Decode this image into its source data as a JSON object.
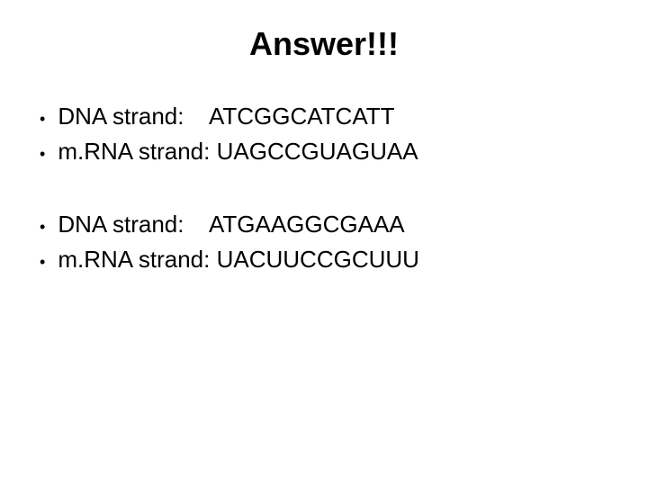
{
  "title": "Answer!!!",
  "title_fontsize": 36,
  "title_fontweight": "bold",
  "body_fontsize": 26,
  "text_color": "#000000",
  "background_color": "#ffffff",
  "bullet_marker": "•",
  "groups": [
    {
      "items": [
        {
          "label": "DNA strand:",
          "value": "ATCGGCATCATT",
          "spacer": "    "
        },
        {
          "label": "m.RNA strand:",
          "value": "UAGCCGUAGUAA",
          "spacer": " "
        }
      ]
    },
    {
      "items": [
        {
          "label": "DNA strand:",
          "value": "ATGAAGGCGAAA",
          "spacer": "    "
        },
        {
          "label": "m.RNA strand:",
          "value": "UACUUCCGCUUU",
          "spacer": " "
        }
      ]
    }
  ]
}
